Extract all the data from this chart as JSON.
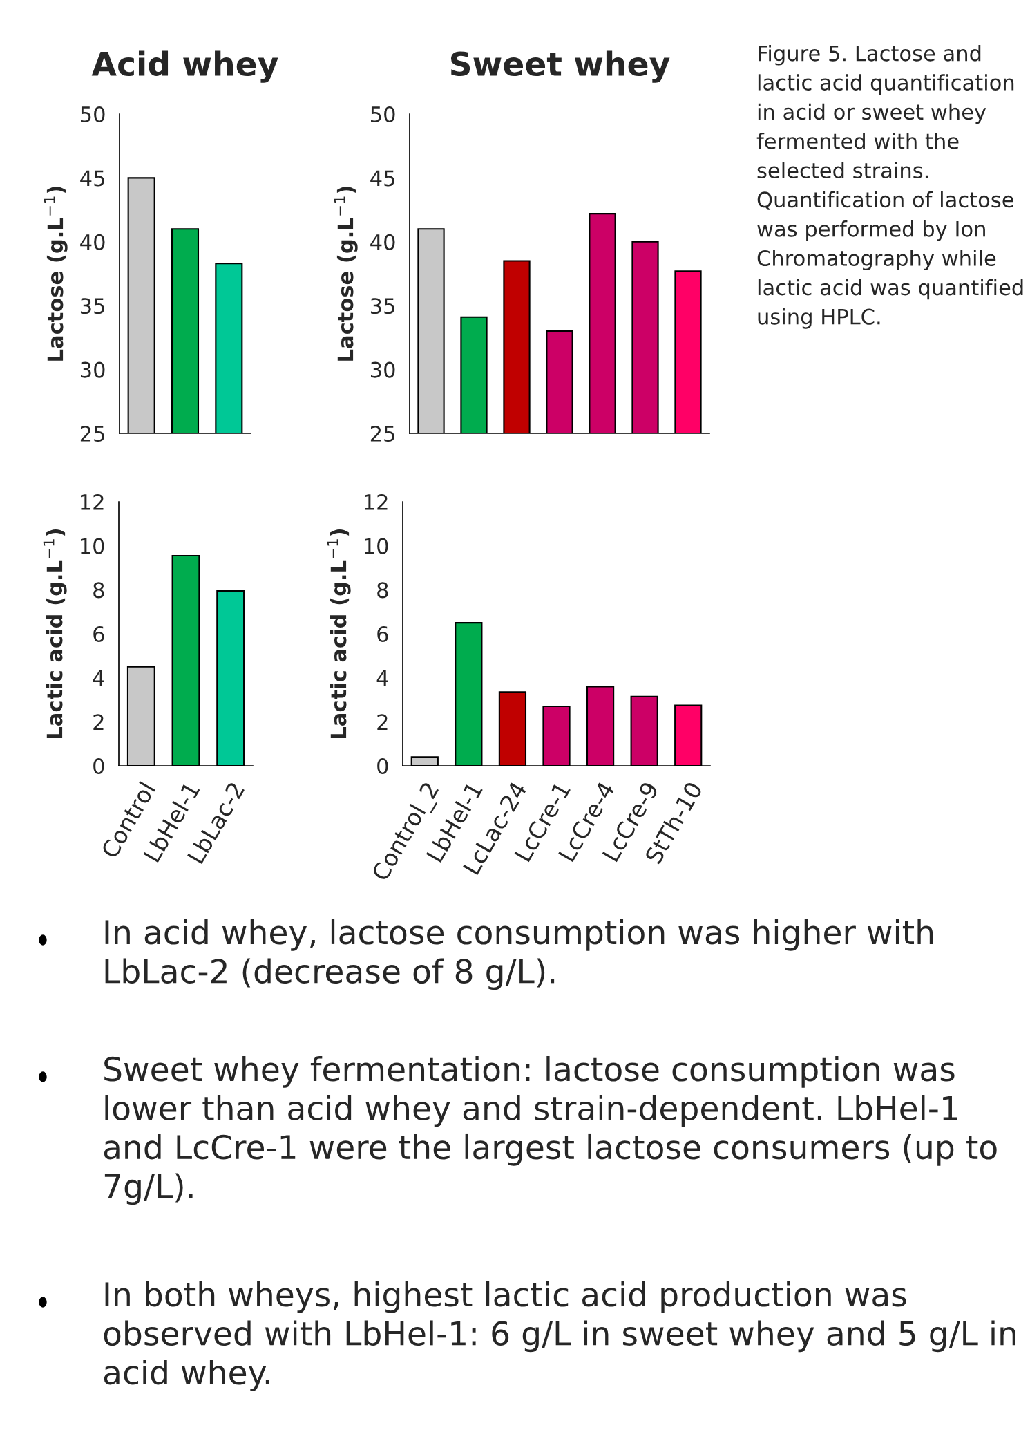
{
  "chart_data": [
    {
      "type": "bar",
      "title": "Acid whey",
      "ylabel": "Lactose (g.L$^{−1}$)",
      "categories": [
        null,
        null,
        null
      ],
      "values": [
        45.0,
        41.0,
        38.3
      ],
      "colors": [
        "#c8c8c8",
        "#00ac4e",
        "#00c896"
      ],
      "ylim": [
        25,
        50
      ],
      "yticks": [
        25,
        30,
        35,
        40,
        45,
        50
      ],
      "grid": false,
      "legend": false
    },
    {
      "type": "bar",
      "title": "Sweet whey",
      "ylabel": "Lactose (g.L$^{−1}$)",
      "categories": [
        null,
        null,
        null,
        null,
        null,
        null,
        null
      ],
      "values": [
        41.0,
        34.1,
        38.5,
        33.0,
        42.2,
        40.0,
        37.7
      ],
      "colors": [
        "#c8c8c8",
        "#00ac4e",
        "#c00000",
        "#cc0066",
        "#cc0066",
        "#cc0066",
        "#ff0066"
      ],
      "ylim": [
        25,
        50
      ],
      "yticks": [
        25,
        30,
        35,
        40,
        45,
        50
      ],
      "grid": false,
      "legend": false,
      "annotations": [
        "Figure 5. Lactose and lactic acid quantification in acid or sweet whey fermented with the selected strains. Quantification of lactose was performed by Ion Chromatography while lactic acid was quantified using HPLC."
      ]
    },
    {
      "type": "bar",
      "ylabel": "Lactic acid (g.L$^{−1}$)",
      "categories": [
        "Control",
        "LbHel-1",
        "LbLac-2"
      ],
      "values": [
        4.5,
        9.55,
        7.95
      ],
      "colors": [
        "#c8c8c8",
        "#00ac4e",
        "#00c896"
      ],
      "ylim": [
        0,
        12
      ],
      "yticks": [
        0,
        2,
        4,
        6,
        8,
        10,
        12
      ],
      "grid": false,
      "legend": false
    },
    {
      "type": "bar",
      "ylabel": "Lactic acid (g.L$^{−1}$)",
      "categories": [
        "Control_2",
        "LbHel-1",
        "LcLac-24",
        "LcCre-1",
        "LcCre-4",
        "LcCre-9",
        "StTh-10"
      ],
      "values": [
        0.4,
        6.5,
        3.35,
        2.7,
        3.6,
        3.15,
        2.75
      ],
      "colors": [
        "#c8c8c8",
        "#00ac4e",
        "#c00000",
        "#cc0066",
        "#cc0066",
        "#cc0066",
        "#ff0066"
      ],
      "ylim": [
        0,
        12
      ],
      "yticks": [
        0,
        2,
        4,
        6,
        8,
        10,
        12
      ],
      "grid": false,
      "legend": false,
      "annotations": [
        "In acid whey, lactose consumption was higher with LbLac-2 (decrease of 8 g/L).",
        "Sweet whey fermentation: lactose consumption was lower than acid whey and strain-dependent. LbHel-1 and LcCre-1 were the largest lactose consumers (up to 7g/L).",
        "In both wheys, highest lactic acid production was observed with LbHel-1: 6 g/L in sweet whey and 5 g/L in acid whey."
      ]
    }
  ]
}
